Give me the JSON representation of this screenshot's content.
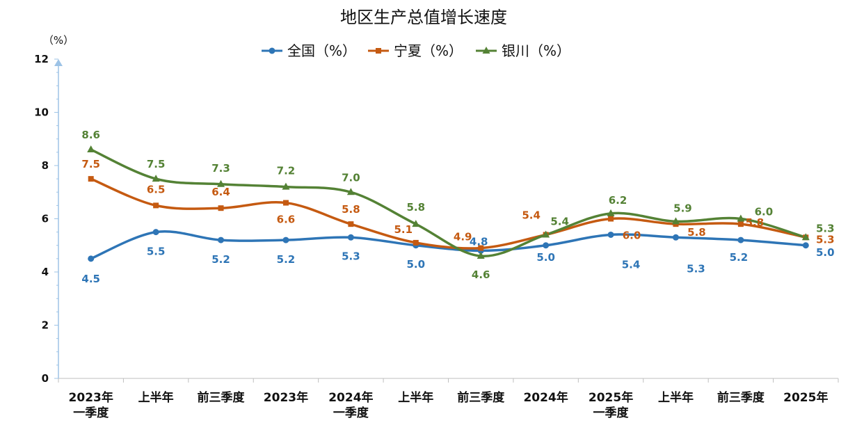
{
  "chart_data": {
    "type": "line",
    "title": "地区生产总值增长速度",
    "ylabel": "（%）",
    "xlabel": "",
    "ylim": [
      0,
      12
    ],
    "yticks": [
      0,
      2,
      4,
      6,
      8,
      10,
      12
    ],
    "grid": false,
    "legend_position": "top",
    "categories": [
      [
        "2023年",
        "一季度"
      ],
      [
        "上半年"
      ],
      [
        "前三季度"
      ],
      [
        "2023年"
      ],
      [
        "2024年",
        "一季度"
      ],
      [
        "上半年"
      ],
      [
        "前三季度"
      ],
      [
        "2024年"
      ],
      [
        "2025年",
        "一季度"
      ],
      [
        "上半年"
      ],
      [
        "前三季度"
      ],
      [
        "2025年"
      ]
    ],
    "series": [
      {
        "name": "全国（%）",
        "color": "#2E75B6",
        "marker": "circle",
        "values": [
          4.5,
          5.5,
          5.2,
          5.2,
          5.3,
          5.0,
          4.8,
          5.0,
          5.4,
          5.3,
          5.2,
          5.0
        ],
        "labels": [
          "4.5",
          "5.5",
          "5.2",
          "5.2",
          "5.3",
          "5.0",
          "4.8",
          "5.0",
          "5.4",
          "5.3",
          "5.2",
          "5.0"
        ]
      },
      {
        "name": "宁夏（%）",
        "color": "#C55A11",
        "marker": "square",
        "values": [
          7.5,
          6.5,
          6.4,
          6.6,
          5.8,
          5.1,
          4.9,
          5.4,
          6.0,
          5.8,
          5.8,
          5.3
        ],
        "labels": [
          "7.5",
          "6.5",
          "6.4",
          "6.6",
          "5.8",
          "5.1",
          "4.9",
          "5.4",
          "6.0",
          "5.8",
          "5.8",
          "5.3"
        ]
      },
      {
        "name": "银川（%）",
        "color": "#548235",
        "marker": "triangle",
        "values": [
          8.6,
          7.5,
          7.3,
          7.2,
          7.0,
          5.8,
          4.6,
          5.4,
          6.2,
          5.9,
          6.0,
          5.3
        ],
        "labels": [
          "8.6",
          "7.5",
          "7.3",
          "7.2",
          "7.0",
          "5.8",
          "4.6",
          "5.4",
          "6.2",
          "5.9",
          "6.0",
          "5.3"
        ]
      }
    ]
  }
}
